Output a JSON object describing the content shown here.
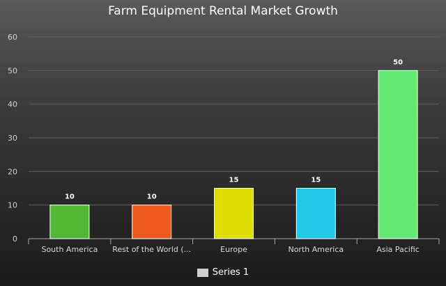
{
  "chart_data": {
    "type": "bar",
    "title": "Farm Equipment Rental Market Growth",
    "categories": [
      "South America",
      "Rest of the World (...",
      "Europe",
      "North America",
      "Asia Pacific"
    ],
    "series": [
      {
        "name": "Series 1",
        "values": [
          10,
          10,
          15,
          15,
          50
        ],
        "colors": [
          "#52b834",
          "#f05a1c",
          "#dede00",
          "#22c8e8",
          "#62e874"
        ]
      }
    ],
    "yticks": [
      "0",
      "10",
      "20",
      "30",
      "40",
      "50",
      "60"
    ],
    "ylim": [
      0,
      60
    ],
    "grid": true,
    "legend": "bottom"
  }
}
